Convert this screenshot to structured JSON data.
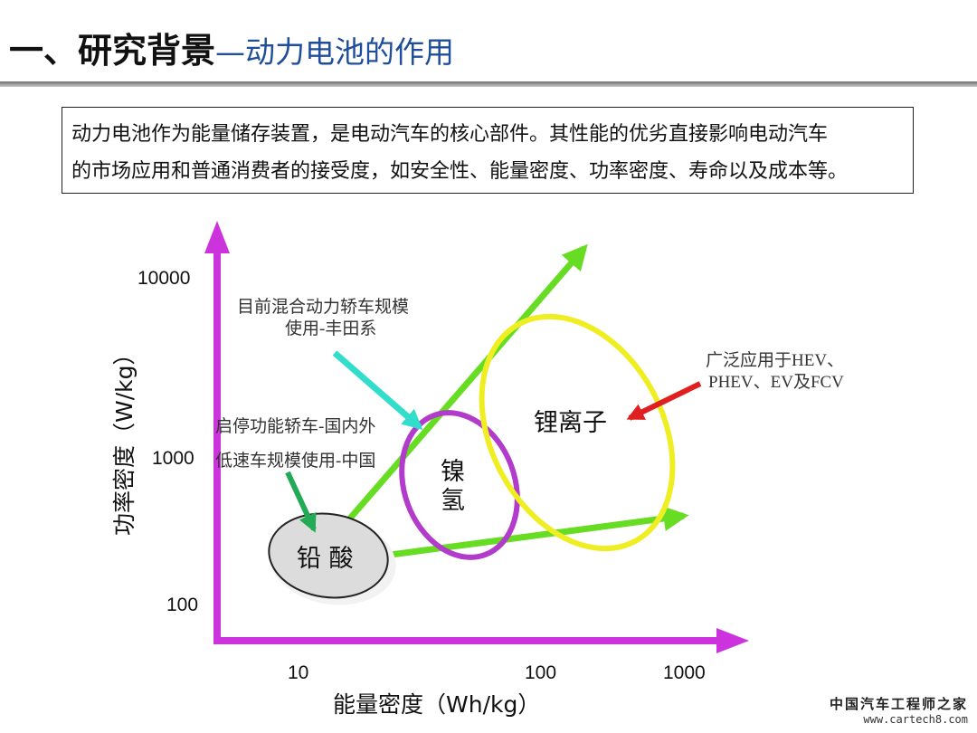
{
  "title": {
    "main": "一、研究背景",
    "sub": "—动力电池的作用"
  },
  "intro": {
    "line1": "动力电池作为能量储存装置，是电动汽车的核心部件。其性能的优劣直接影响电动汽车",
    "line2": "的市场应用和普通消费者的接受度，如安全性、能量密度、功率密度、寿命以及成本等。"
  },
  "diagram": {
    "y_axis": {
      "title": "功率密度（W/kg）",
      "ticks": [
        "10000",
        "1000",
        "100"
      ]
    },
    "x_axis": {
      "title": "能量密度（Wh/kg）",
      "ticks": [
        "10",
        "100",
        "1000"
      ]
    },
    "regions": {
      "lead_acid": "铅 酸",
      "nimh_line1": "镍",
      "nimh_line2": "氢",
      "li_ion": "锂离子"
    },
    "annotations": {
      "hybrid_line1": "目前混合动力轿车规模",
      "hybrid_line2": "使用-丰田系",
      "stop_start": "启停功能轿车-国内外",
      "low_speed": "低速车规模使用-中国",
      "li_app_line1": "广泛应用于HEV、",
      "li_app_line2": "PHEV、EV及FCV"
    },
    "colors": {
      "axis": "#cc33dd",
      "arrow_green": "#66dd22",
      "ellipse_nimh": "#b23bcb",
      "ellipse_li": "#eeee22",
      "arrow_cyan": "#33ddcc",
      "arrow_red": "#e02020",
      "lead_fill": "#dcdcdc"
    }
  },
  "watermark": {
    "name": "中国汽车工程师之家",
    "url": "www.cartech8.com"
  }
}
